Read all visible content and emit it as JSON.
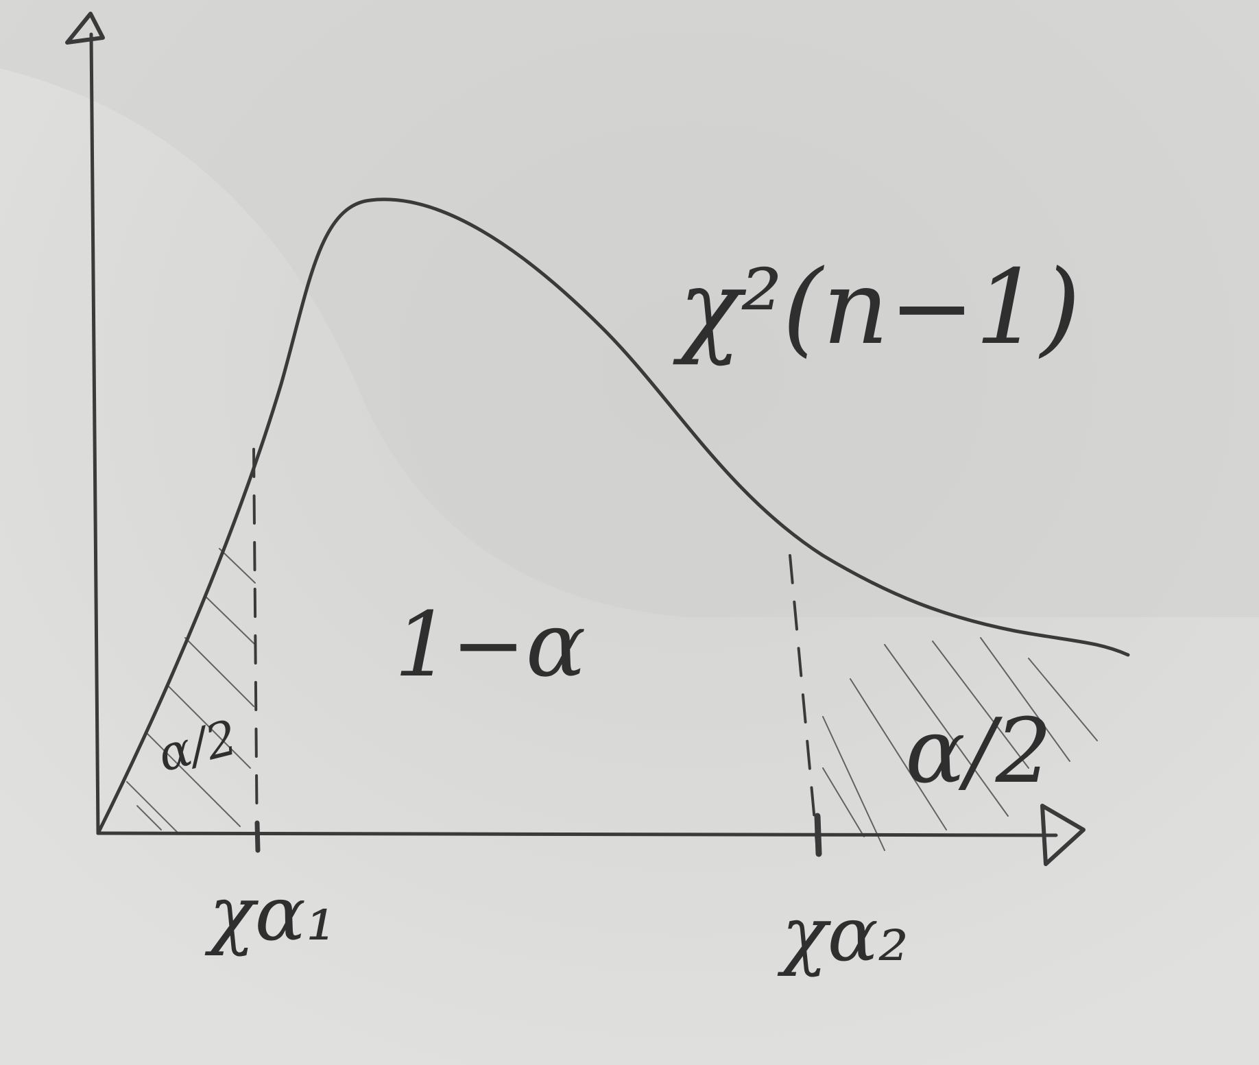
{
  "curve_label": "χ²(n−1)",
  "middle_area_label": "1−α",
  "left_tail_label": "α/2",
  "right_tail_label": "α/2",
  "left_quantile_label": "χα₁",
  "right_quantile_label": "χα₂",
  "colors": {
    "paper": "#dcdcda",
    "ink": "#3a3a3a",
    "shadow": "#cfcfcd"
  }
}
